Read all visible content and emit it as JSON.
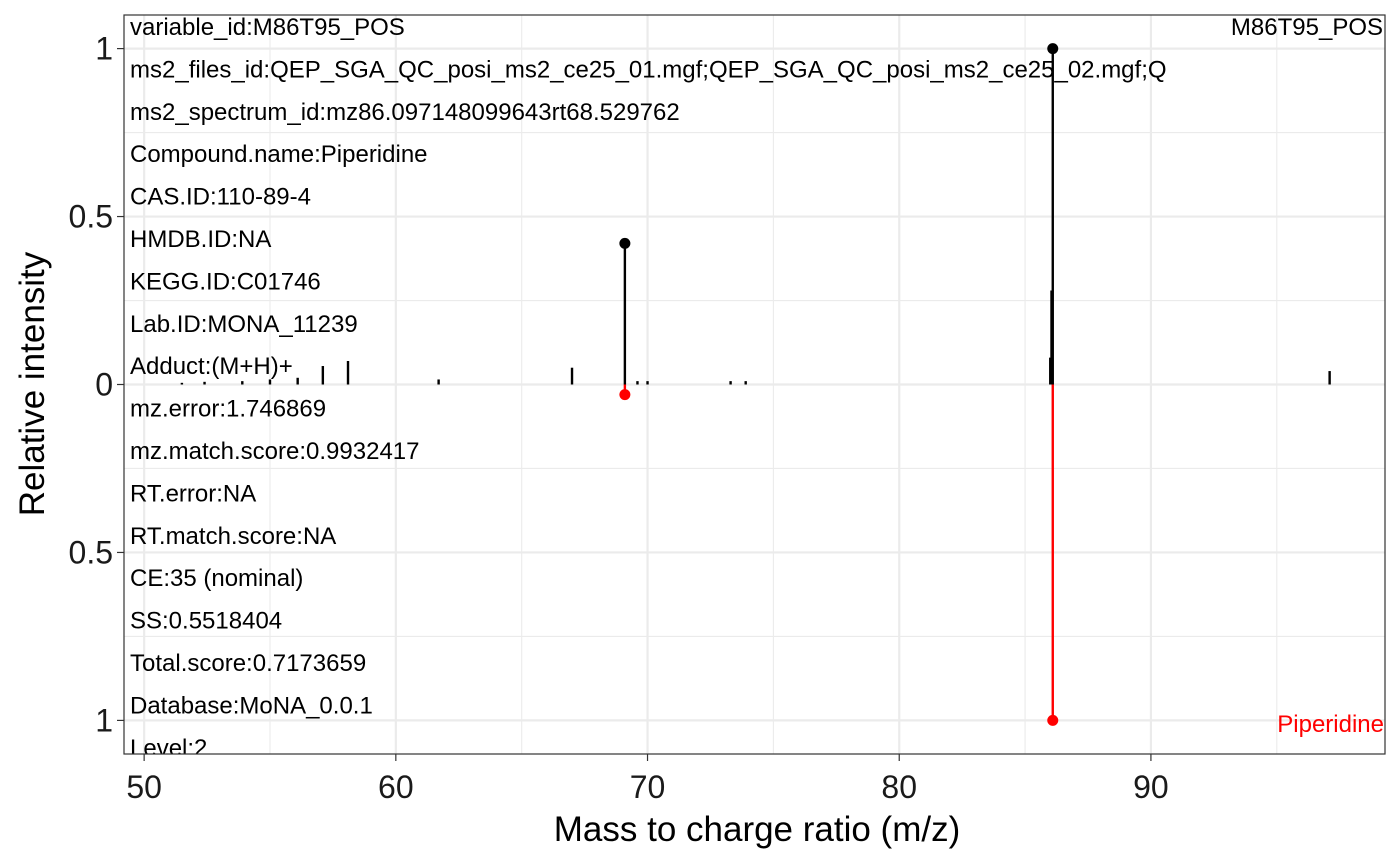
{
  "chart_data": {
    "type": "mirror-spectrum",
    "xlabel": "Mass to charge ratio (m/z)",
    "ylabel": "Relative intensity",
    "xlim": [
      49.2,
      99.3
    ],
    "ylim": [
      -1.1,
      1.1
    ],
    "x_ticks": [
      50,
      60,
      70,
      80,
      90
    ],
    "x_tick_labels": [
      "50",
      "60",
      "70",
      "80",
      "90"
    ],
    "y_ticks": [
      1,
      0.5,
      0,
      -0.5,
      -1
    ],
    "y_tick_labels": [
      "1",
      "0.5",
      "0",
      "0.5",
      "1"
    ],
    "grid": true,
    "colors": {
      "experimental": "#000000",
      "library": "#ff0000",
      "grid": "#ebebeb"
    },
    "experimental": {
      "label": "M86T95_POS",
      "peaks": [
        {
          "mz": 51.5,
          "intensity": 0.005
        },
        {
          "mz": 52.4,
          "intensity": 0.008
        },
        {
          "mz": 53.9,
          "intensity": 0.01
        },
        {
          "mz": 55.0,
          "intensity": 0.015
        },
        {
          "mz": 56.1,
          "intensity": 0.02
        },
        {
          "mz": 57.1,
          "intensity": 0.055
        },
        {
          "mz": 58.1,
          "intensity": 0.07
        },
        {
          "mz": 61.7,
          "intensity": 0.015
        },
        {
          "mz": 67.0,
          "intensity": 0.05
        },
        {
          "mz": 69.1,
          "intensity": 0.42
        },
        {
          "mz": 69.6,
          "intensity": 0.01
        },
        {
          "mz": 70.0,
          "intensity": 0.01
        },
        {
          "mz": 73.3,
          "intensity": 0.01
        },
        {
          "mz": 73.9,
          "intensity": 0.01
        },
        {
          "mz": 86.0,
          "intensity": 0.08
        },
        {
          "mz": 86.05,
          "intensity": 0.28
        },
        {
          "mz": 86.1,
          "intensity": 1.0
        },
        {
          "mz": 97.1,
          "intensity": 0.04
        }
      ],
      "labeled_points": [
        69.1,
        86.1
      ]
    },
    "library": {
      "label": "Piperidine",
      "peaks": [
        {
          "mz": 69.1,
          "intensity": 0.03
        },
        {
          "mz": 86.1,
          "intensity": 1.0
        }
      ]
    },
    "annotations": [
      "variable_id:M86T95_POS",
      "ms2_files_id:QEP_SGA_QC_posi_ms2_ce25_01.mgf;QEP_SGA_QC_posi_ms2_ce25_02.mgf;Q",
      "ms2_spectrum_id:mz86.097148099643rt68.529762",
      "Compound.name:Piperidine",
      "CAS.ID:110-89-4",
      "HMDB.ID:NA",
      "KEGG.ID:C01746",
      "Lab.ID:MONA_11239",
      "Adduct:(M+H)+",
      "mz.error:1.746869",
      "mz.match.score:0.9932417",
      "RT.error:NA",
      "RT.match.score:NA",
      "CE:35  (nominal)",
      "SS:0.5518404",
      "Total.score:0.7173659",
      "Database:MoNA_0.0.1",
      "Level:2"
    ]
  }
}
